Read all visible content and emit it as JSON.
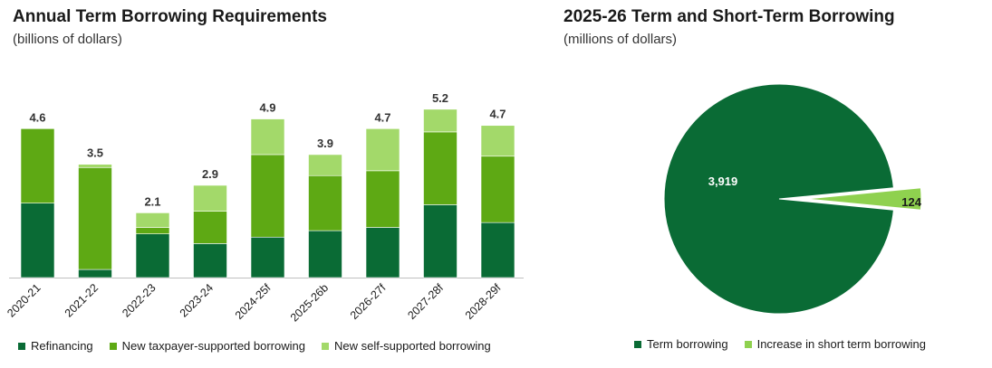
{
  "left": {
    "title": "Annual Term Borrowing Requirements",
    "subtitle": "(billions of dollars)"
  },
  "right": {
    "title": "2025-26 Term and Short-Term Borrowing",
    "subtitle": "(millions of dollars)"
  },
  "colors": {
    "refinancing": "#0a6b35",
    "taxpayer": "#5ea914",
    "self": "#a3d96a",
    "term": "#0a6b35",
    "short_term": "#8fd14f"
  },
  "chart_data": [
    {
      "type": "bar",
      "stacked": true,
      "title": "Annual Term Borrowing Requirements",
      "subtitle": "(billions of dollars)",
      "categories": [
        "2020-21",
        "2021-22",
        "2022-23",
        "2023-24",
        "2024-25f",
        "2025-26b",
        "2026-27f",
        "2027-28f",
        "2028-29f"
      ],
      "totals": [
        "4.6",
        "3.5",
        "2.1",
        "2.9",
        "4.9",
        "3.9",
        "4.7",
        "5.2",
        "4.7"
      ],
      "series": [
        {
          "name": "Refinancing",
          "values": [
            2.3,
            0.25,
            1.35,
            1.05,
            1.25,
            1.45,
            1.55,
            2.25,
            1.7
          ]
        },
        {
          "name": "New taxpayer-supported borrowing",
          "values": [
            2.3,
            3.15,
            0.2,
            1.0,
            2.55,
            1.7,
            1.75,
            2.25,
            2.05
          ]
        },
        {
          "name": "New self-supported borrowing",
          "values": [
            0.0,
            0.1,
            0.45,
            0.8,
            1.1,
            0.65,
            1.3,
            0.7,
            0.95
          ]
        }
      ],
      "ylim": [
        0,
        5.4
      ],
      "grid": false,
      "legend": "bottom"
    },
    {
      "type": "pie",
      "title": "2025-26 Term and Short-Term Borrowing",
      "subtitle": "(millions of dollars)",
      "slices": [
        {
          "name": "Term borrowing",
          "value": 3919,
          "label": "3,919"
        },
        {
          "name": "Increase in short term borrowing",
          "value": 124,
          "label": "124"
        }
      ],
      "exploded": "Increase in short term borrowing",
      "legend": "bottom"
    }
  ]
}
